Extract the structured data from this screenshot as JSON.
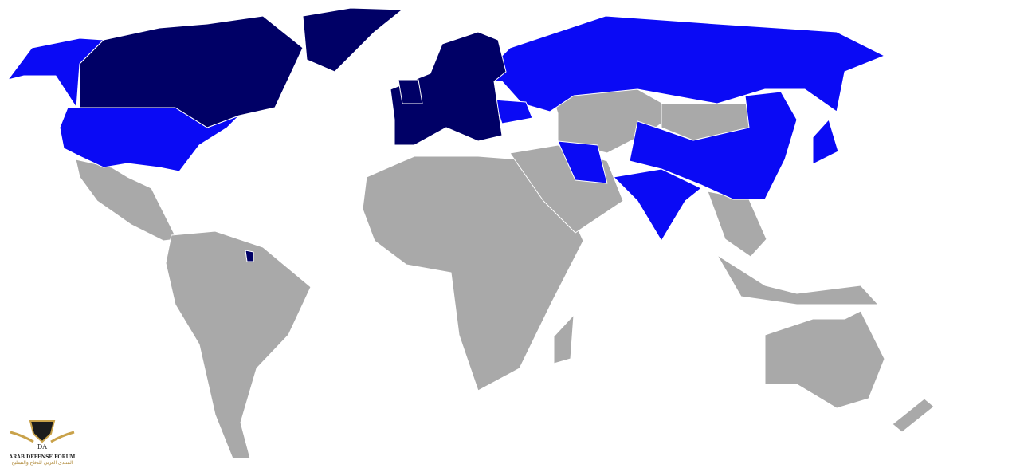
{
  "map": {
    "colors": {
      "group_dark": "#000066",
      "group_blue": "#0a0af5",
      "other": "#a9a9a9",
      "background": "#ffffff",
      "border": "#ffffff"
    },
    "regions_dark": [
      "Canada",
      "Greenland",
      "Western & Central Europe",
      "United Kingdom",
      "Scandinavia",
      "French Guiana"
    ],
    "regions_blue": [
      "Alaska / United States",
      "Russia",
      "Ukraine",
      "Iran",
      "India",
      "China",
      "Japan"
    ]
  },
  "watermark": {
    "name_en": "ARAB DEFENSE FORUM",
    "name_ar": "المنتدى العربي للدفاع والتسليح",
    "monogram": "DA"
  }
}
